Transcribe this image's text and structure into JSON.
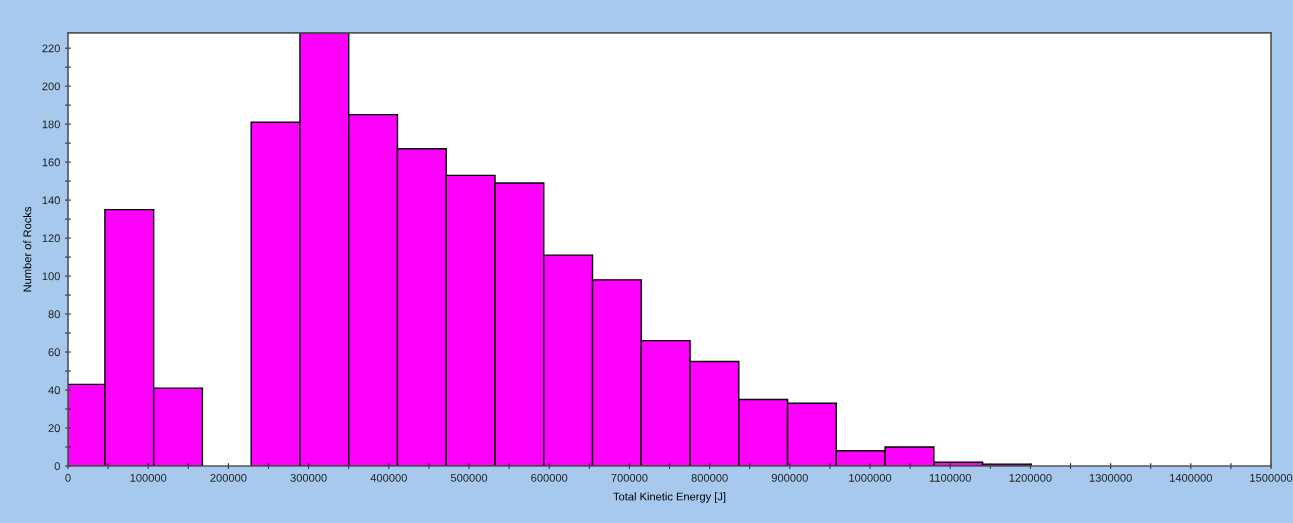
{
  "chart_data": {
    "type": "histogram",
    "xlabel": "Total Kinetic Energy [J]",
    "ylabel": "Number of Rocks",
    "bins": [
      0,
      46000,
      106800,
      167600,
      228400,
      289200,
      350000,
      410800,
      471600,
      532400,
      593200,
      654000,
      714800,
      775600,
      836400,
      897200,
      958000,
      1018800,
      1079600,
      1140400,
      1201200
    ],
    "values": [
      43,
      135,
      41,
      0,
      181,
      228,
      185,
      167,
      153,
      149,
      111,
      98,
      66,
      55,
      35,
      33,
      8,
      10,
      2,
      1
    ],
    "color": "#ff00ff",
    "xlim": [
      0,
      1500000
    ],
    "xticks": [
      0,
      {
        "value": 50000,
        "label": null
      },
      100000,
      {
        "value": 150000,
        "label": null
      },
      200000,
      {
        "value": 250000,
        "label": null
      },
      300000,
      {
        "value": 350000,
        "label": null
      },
      400000,
      {
        "value": 450000,
        "label": null
      },
      500000,
      {
        "value": 550000,
        "label": null
      },
      600000,
      {
        "value": 650000,
        "label": null
      },
      700000,
      {
        "value": 750000,
        "label": null
      },
      800000,
      {
        "value": 850000,
        "label": null
      },
      900000,
      {
        "value": 950000,
        "label": null
      },
      1000000,
      {
        "value": 1050000,
        "label": null
      },
      1100000,
      {
        "value": 1150000,
        "label": null
      },
      1200000,
      {
        "value": 1250000,
        "label": null
      },
      1300000,
      {
        "value": 1350000,
        "label": null
      },
      1400000,
      {
        "value": 1450000,
        "label": null
      },
      1500000
    ],
    "ylim": [
      0,
      228
    ],
    "yticks": [
      0,
      {
        "value": 10,
        "label": null
      },
      20,
      {
        "value": 30,
        "label": null
      },
      40,
      {
        "value": 50,
        "label": null
      },
      60,
      {
        "value": 70,
        "label": null
      },
      80,
      {
        "value": 90,
        "label": null
      },
      100,
      {
        "value": 110,
        "label": null
      },
      120,
      {
        "value": 130,
        "label": null
      },
      140,
      {
        "value": 150,
        "label": null
      },
      160,
      {
        "value": 170,
        "label": null
      },
      180,
      {
        "value": 190,
        "label": null
      },
      200,
      {
        "value": 210,
        "label": null
      },
      220
    ],
    "grid": false
  }
}
